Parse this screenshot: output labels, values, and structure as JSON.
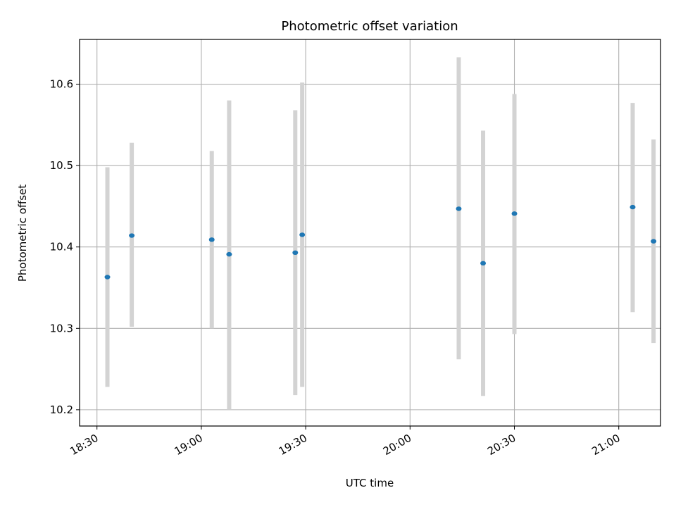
{
  "chart_data": {
    "type": "scatter",
    "title": "Photometric offset variation",
    "xlabel": "UTC time",
    "ylabel": "Photometric offset",
    "x_ticks": [
      "18:30",
      "19:00",
      "19:30",
      "20:00",
      "20:30",
      "21:00"
    ],
    "y_ticks": [
      "10.2",
      "10.3",
      "10.4",
      "10.5",
      "10.6"
    ],
    "xlim": [
      "18:25",
      "21:12"
    ],
    "ylim": [
      10.18,
      10.655
    ],
    "grid": true,
    "colors": {
      "point": "#1f77b4",
      "errorbar": "#d3d3d3",
      "grid": "#b0b0b0"
    },
    "points": [
      {
        "time": "18:33",
        "y": 10.363,
        "ylow": 10.228,
        "yhigh": 10.498
      },
      {
        "time": "18:40",
        "y": 10.414,
        "ylow": 10.302,
        "yhigh": 10.528
      },
      {
        "time": "19:03",
        "y": 10.409,
        "ylow": 10.3,
        "yhigh": 10.518
      },
      {
        "time": "19:08",
        "y": 10.391,
        "ylow": 10.2,
        "yhigh": 10.58
      },
      {
        "time": "19:27",
        "y": 10.393,
        "ylow": 10.218,
        "yhigh": 10.568
      },
      {
        "time": "19:29",
        "y": 10.415,
        "ylow": 10.228,
        "yhigh": 10.602
      },
      {
        "time": "20:14",
        "y": 10.447,
        "ylow": 10.262,
        "yhigh": 10.633
      },
      {
        "time": "20:21",
        "y": 10.38,
        "ylow": 10.217,
        "yhigh": 10.543
      },
      {
        "time": "20:30",
        "y": 10.441,
        "ylow": 10.293,
        "yhigh": 10.588
      },
      {
        "time": "21:04",
        "y": 10.449,
        "ylow": 10.32,
        "yhigh": 10.577
      },
      {
        "time": "21:10",
        "y": 10.407,
        "ylow": 10.282,
        "yhigh": 10.532
      }
    ]
  }
}
